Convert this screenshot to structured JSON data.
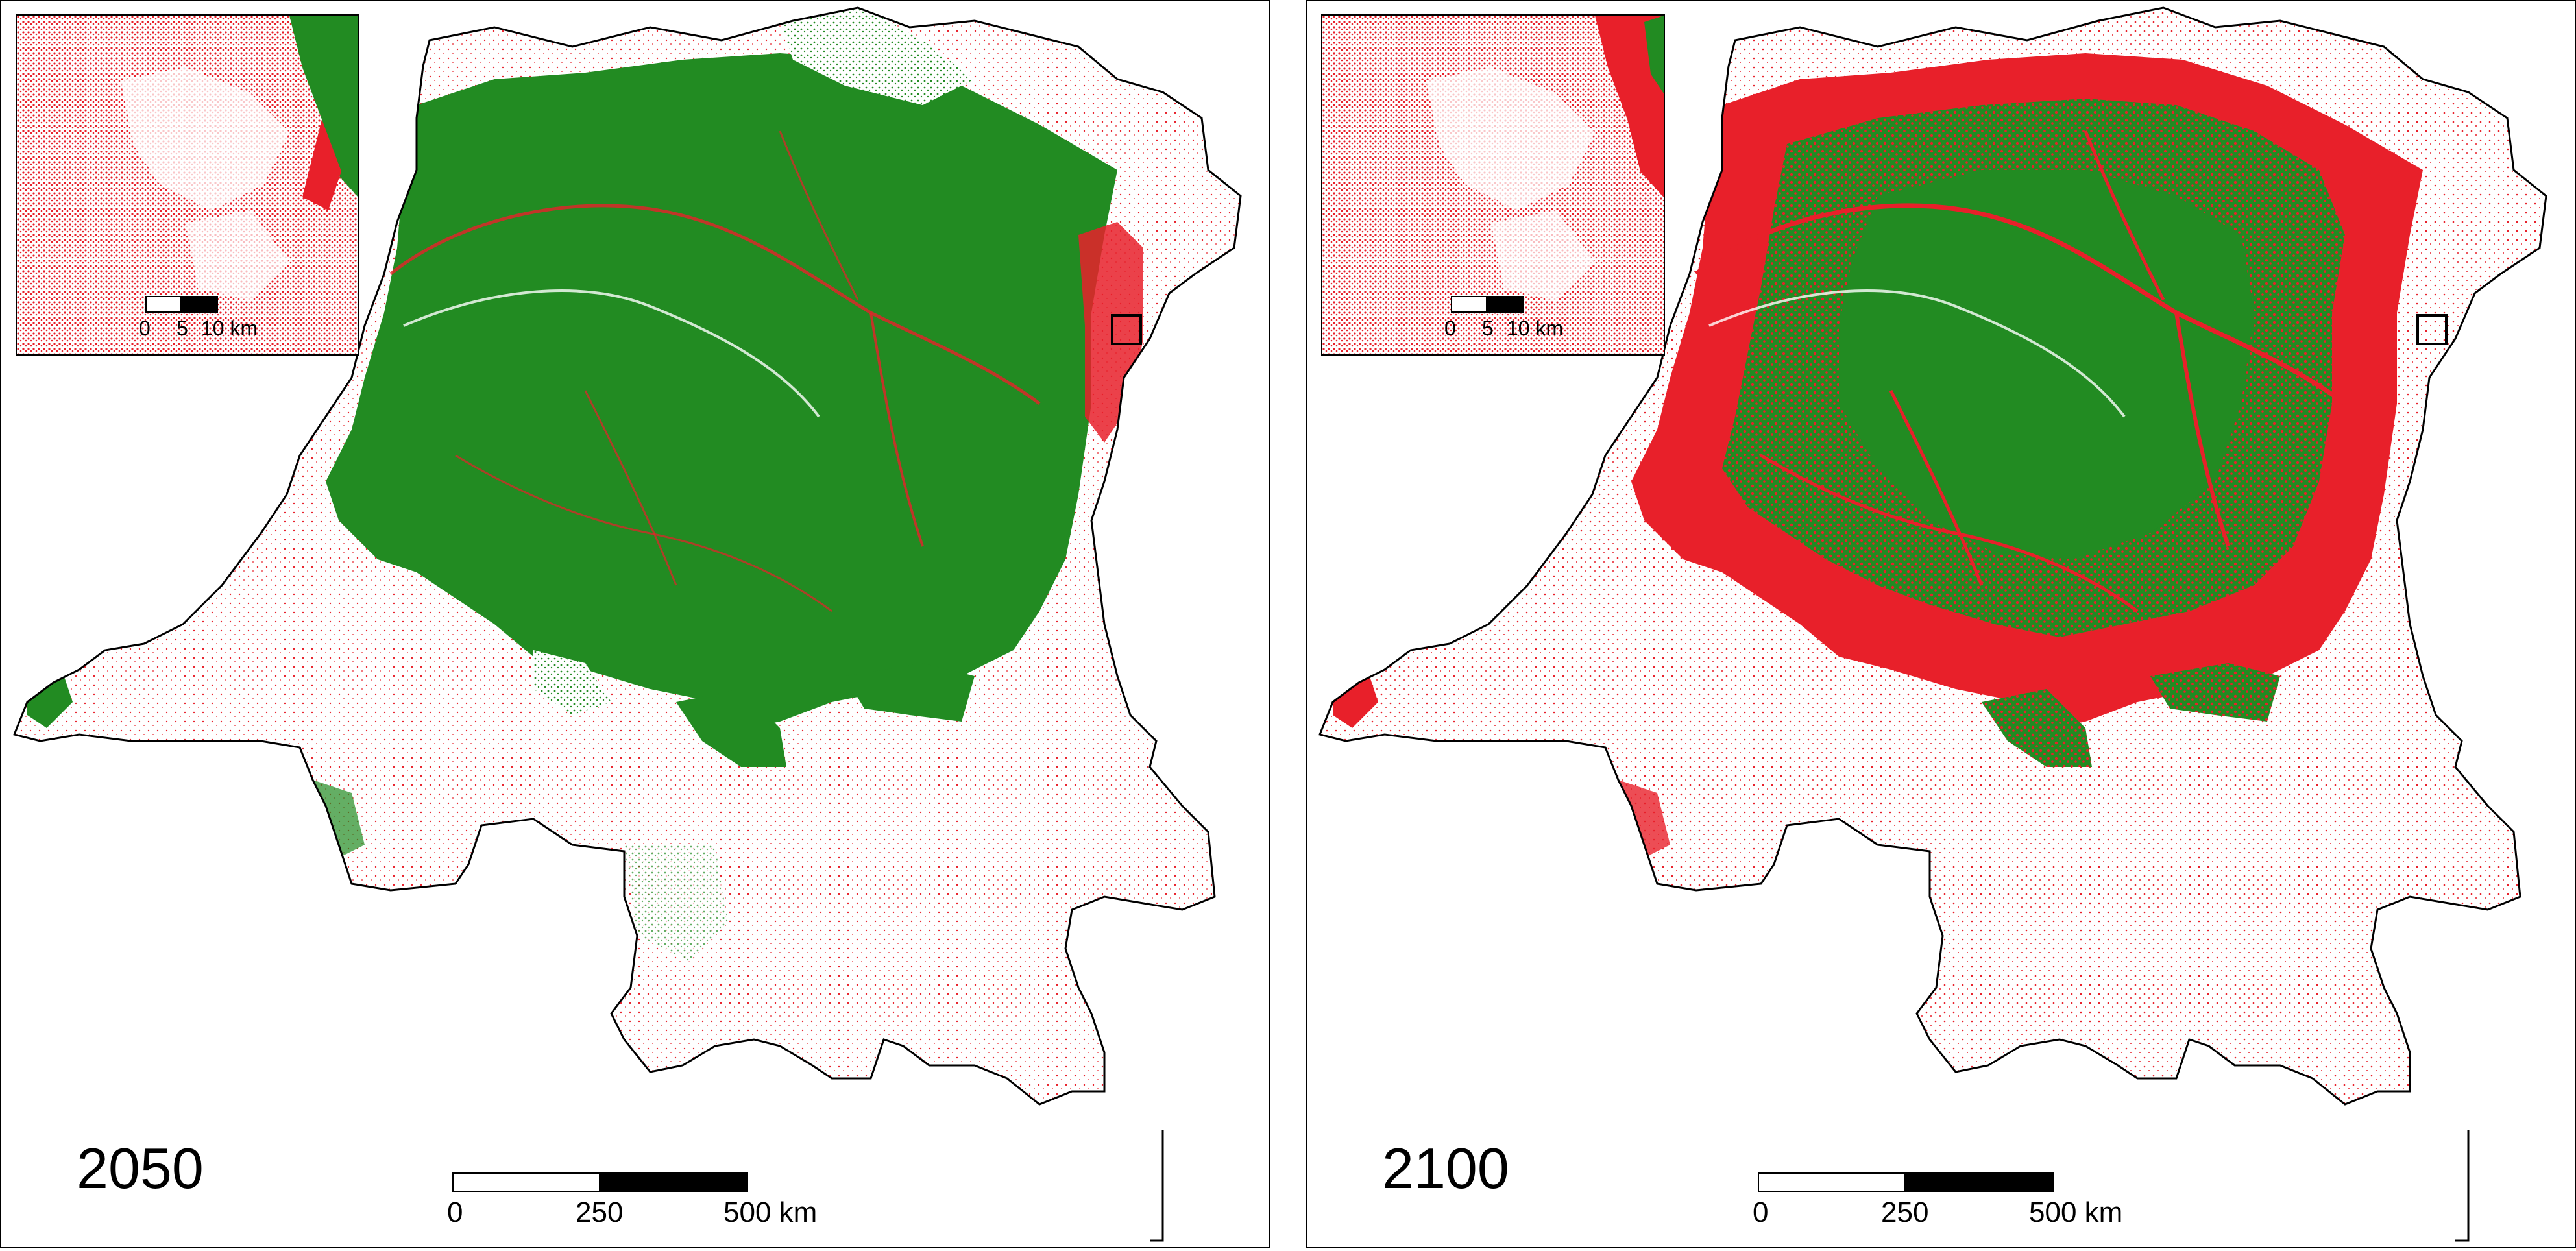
{
  "colors": {
    "forest": "#228b22",
    "deforested": "#e8202a",
    "nonforest": "#ffffff",
    "border": "#000000"
  },
  "panels": [
    {
      "year": "2050",
      "scale": {
        "zero": "0",
        "mid": "250",
        "end": "500 km"
      },
      "inset_scale": {
        "zero": "0",
        "mid": "5",
        "end": "10 km"
      },
      "forest_remaining_level": 0.8
    },
    {
      "year": "2100",
      "scale": {
        "zero": "0",
        "mid": "250",
        "end": "500 km"
      },
      "inset_scale": {
        "zero": "0",
        "mid": "5",
        "end": "10 km"
      },
      "forest_remaining_level": 0.5
    }
  ]
}
